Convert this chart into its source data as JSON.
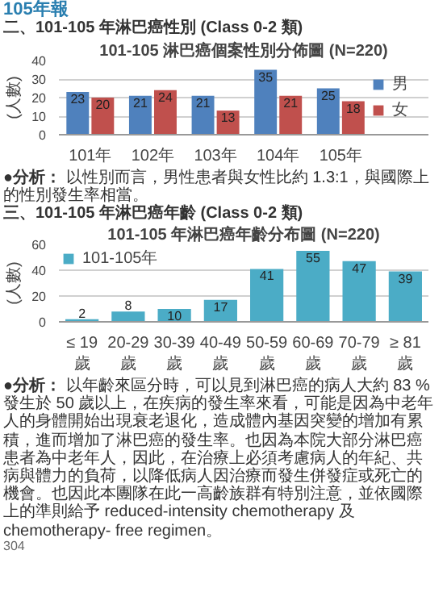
{
  "chart_data": [
    {
      "type": "bar",
      "title": "101-105 淋巴癌個案性別分佈圖 (N=220)",
      "subtitle": "二、101-105 年淋巴癌性別 (Class 0-2 類)",
      "ylabel": "(人數)",
      "categories": [
        "101年",
        "102年",
        "103年",
        "104年",
        "105年"
      ],
      "series": [
        {
          "name": "男",
          "color": "#4f81bd",
          "values": [
            23,
            21,
            21,
            35,
            25
          ]
        },
        {
          "name": "女",
          "color": "#c0504d",
          "values": [
            20,
            24,
            13,
            21,
            18
          ]
        }
      ],
      "ylim": [
        0,
        40
      ],
      "yticks": [
        0,
        10,
        20,
        30,
        40
      ],
      "grid": "y",
      "legend": "right",
      "data_labels": true,
      "annotations": [
        "105年報",
        "●分析：",
        "以性別而言，男性患者與女性比約 1.3:1，與國際上的性別發生率相當。"
      ]
    },
    {
      "type": "bar",
      "title": "101-105 年淋巴癌年齡分布圖 (N=220)",
      "subtitle": "三、101-105 年淋巴癌年齡 (Class 0-2 類)",
      "ylabel": "(人數)",
      "categories": [
        "≤ 19歲",
        "20-29歲",
        "30-39歲",
        "40-49歲",
        "50-59歲",
        "60-69歲",
        "70-79歲",
        "≥ 81歲"
      ],
      "series": [
        {
          "name": "101-105年",
          "color": "#4bacc6",
          "values": [
            2,
            8,
            10,
            17,
            41,
            55,
            47,
            39
          ]
        }
      ],
      "ylim": [
        0,
        60
      ],
      "yticks": [
        0,
        20,
        40,
        60
      ],
      "grid": "y",
      "legend": "top left",
      "data_labels": true,
      "annotations": [
        "●分析：",
        "以年齡來區分時，可以見到淋巴癌的病人大約 83 % 發生於 50 歲以上，在疾病的發生率來看，可能是因為中老年人的身體開始出現衰老退化，造成體內基因突變的增加有累積，進而增加了淋巴癌的發生率。也因為本院大部分淋巴癌患者為中老年人，因此，在治療上必須考慮病人的年紀、共病與體力的負荷，以降低病人因治療而發生併發症或死亡的機會。也因此本團隊在此一高齡族群有特別注意，並依國際上的準則給予 reduced-intensity chemotherapy 及 chemotherapy- free regimen。",
        "304"
      ]
    }
  ]
}
